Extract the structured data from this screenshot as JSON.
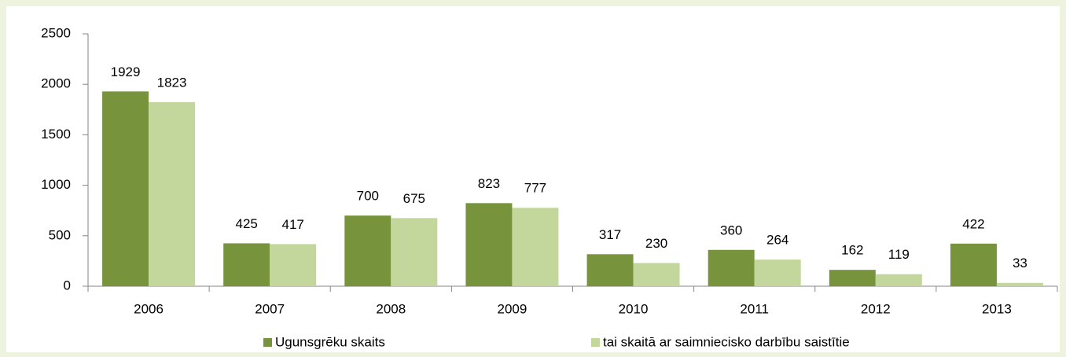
{
  "chart_data": {
    "type": "bar",
    "categories": [
      "2006",
      "2007",
      "2008",
      "2009",
      "2010",
      "2011",
      "2012",
      "2013"
    ],
    "series": [
      {
        "name": "Ugunsgrēku skaits",
        "color": "#77933c",
        "values": [
          1929,
          425,
          700,
          823,
          317,
          360,
          162,
          422
        ]
      },
      {
        "name": "tai skaitā ar saimniecisko darbību saistītie",
        "color": "#c3d69b",
        "values": [
          1823,
          417,
          675,
          777,
          230,
          264,
          119,
          33
        ]
      }
    ],
    "ylim": [
      0,
      2500
    ],
    "yticks": [
      0,
      500,
      1000,
      1500,
      2000,
      2500
    ],
    "legend": "bottom"
  }
}
